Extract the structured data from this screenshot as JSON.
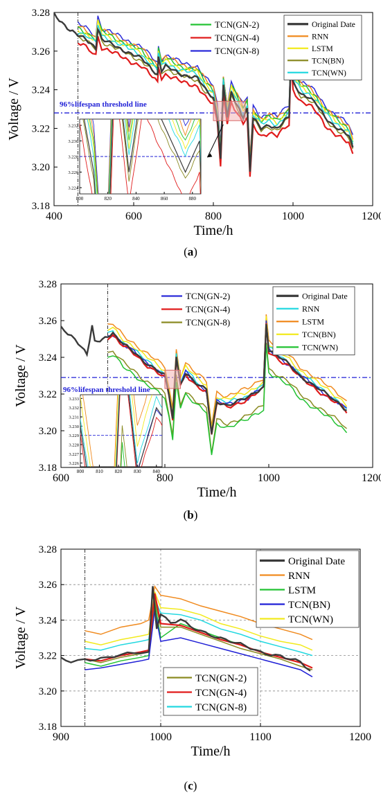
{
  "chart_data": [
    {
      "type": "line",
      "panel": "a",
      "caption_letter": "a",
      "xlabel": "Time/h",
      "ylabel": "Voltage / V",
      "xlim": [
        400,
        1200
      ],
      "ylim": [
        3.18,
        3.28
      ],
      "x_ticks": [
        "400",
        "600",
        "800",
        "1000",
        "1200"
      ],
      "y_ticks": [
        "3.18",
        "3.20",
        "3.22",
        "3.24",
        "3.26",
        "3.28"
      ],
      "grid": false,
      "threshold": {
        "label": "96%lifespan threshold line",
        "value": 3.228,
        "color": "#1f1fd6"
      },
      "prediction_start": 460,
      "legend_left": [
        {
          "name": "TCN(GN-2)",
          "color": "#22c232"
        },
        {
          "name": "TCN(GN-4)",
          "color": "#e01b1b"
        },
        {
          "name": "TCN(GN-8)",
          "color": "#2b2bd9"
        }
      ],
      "legend_right": [
        {
          "name": "Original Date",
          "color": "#3a3a3a"
        },
        {
          "name": "RNN",
          "color": "#f08a1e"
        },
        {
          "name": "LSTM",
          "color": "#f2ea1c"
        },
        {
          "name": "TCN(BN)",
          "color": "#8a8a22"
        },
        {
          "name": "TCN(WN)",
          "color": "#22d8e0"
        }
      ],
      "original": {
        "name": "Original Date",
        "color": "#3a3a3a",
        "points": [
          [
            400,
            3.279
          ],
          [
            420,
            3.275
          ],
          [
            440,
            3.271
          ],
          [
            460,
            3.268
          ],
          [
            480,
            3.266
          ],
          [
            505,
            3.262
          ],
          [
            510,
            3.272
          ],
          [
            520,
            3.266
          ],
          [
            540,
            3.264
          ],
          [
            560,
            3.262
          ],
          [
            580,
            3.26
          ],
          [
            600,
            3.258
          ],
          [
            620,
            3.256
          ],
          [
            640,
            3.252
          ],
          [
            660,
            3.248
          ],
          [
            662,
            3.257
          ],
          [
            670,
            3.25
          ],
          [
            680,
            3.252
          ],
          [
            700,
            3.25
          ],
          [
            720,
            3.248
          ],
          [
            740,
            3.247
          ],
          [
            760,
            3.246
          ],
          [
            780,
            3.24
          ],
          [
            800,
            3.236
          ],
          [
            810,
            3.226
          ],
          [
            818,
            3.205
          ],
          [
            825,
            3.242
          ],
          [
            835,
            3.226
          ],
          [
            845,
            3.238
          ],
          [
            860,
            3.232
          ],
          [
            875,
            3.226
          ],
          [
            885,
            3.23
          ],
          [
            892,
            3.198
          ],
          [
            900,
            3.225
          ],
          [
            920,
            3.22
          ],
          [
            940,
            3.222
          ],
          [
            960,
            3.22
          ],
          [
            980,
            3.224
          ],
          [
            990,
            3.226
          ],
          [
            995,
            3.259
          ],
          [
            1000,
            3.244
          ],
          [
            1020,
            3.238
          ],
          [
            1040,
            3.236
          ],
          [
            1060,
            3.232
          ],
          [
            1080,
            3.226
          ],
          [
            1100,
            3.222
          ],
          [
            1120,
            3.219
          ],
          [
            1140,
            3.216
          ],
          [
            1150,
            3.21
          ]
        ]
      },
      "series": [
        {
          "name": "TCN(GN-8)",
          "color": "#2b2bd9",
          "offset": 0.006
        },
        {
          "name": "RNN",
          "color": "#f08a1e",
          "offset": 0.005
        },
        {
          "name": "TCN(GN-2)",
          "color": "#22c232",
          "offset": 0.004
        },
        {
          "name": "LSTM",
          "color": "#f2ea1c",
          "offset": 0.003
        },
        {
          "name": "TCN(WN)",
          "color": "#22d8e0",
          "offset": 0.002
        },
        {
          "name": "TCN(BN)",
          "color": "#8a8a22",
          "offset": -0.001
        },
        {
          "name": "TCN(GN-4)",
          "color": "#e01b1b",
          "offset": -0.004
        }
      ],
      "inset": {
        "x_ticks": [
          "800",
          "820",
          "840",
          "860",
          "880"
        ],
        "y_ticks": [
          "3.224",
          "3.226",
          "3.228",
          "3.230",
          "3.232"
        ]
      }
    },
    {
      "type": "line",
      "panel": "b",
      "caption_letter": "b",
      "xlabel": "Time/h",
      "ylabel": "Voltage / V",
      "xlim": [
        600,
        1200
      ],
      "ylim": [
        3.18,
        3.28
      ],
      "x_ticks": [
        "600",
        "800",
        "1000",
        "1200"
      ],
      "y_ticks": [
        "3.18",
        "3.20",
        "3.22",
        "3.24",
        "3.26",
        "3.28"
      ],
      "grid": false,
      "threshold": {
        "label": "96%lifespan threshold line",
        "value": 3.229,
        "color": "#1f1fd6"
      },
      "prediction_start": 690,
      "legend_left": [
        {
          "name": "TCN(GN-2)",
          "color": "#2b2bd9"
        },
        {
          "name": "TCN(GN-4)",
          "color": "#e01b1b"
        },
        {
          "name": "TCN(GN-8)",
          "color": "#8a8a22"
        }
      ],
      "legend_right": [
        {
          "name": "Original Date",
          "color": "#3a3a3a"
        },
        {
          "name": "RNN",
          "color": "#22d8e0"
        },
        {
          "name": "LSTM",
          "color": "#f08a1e"
        },
        {
          "name": "TCN(BN)",
          "color": "#f2ea1c"
        },
        {
          "name": "TCN(WN)",
          "color": "#22c232"
        }
      ],
      "original": {
        "name": "Original Date",
        "color": "#3a3a3a",
        "points": [
          [
            600,
            3.256
          ],
          [
            620,
            3.252
          ],
          [
            640,
            3.246
          ],
          [
            650,
            3.241
          ],
          [
            660,
            3.257
          ],
          [
            665,
            3.248
          ],
          [
            680,
            3.25
          ],
          [
            690,
            3.252
          ],
          [
            700,
            3.253
          ],
          [
            720,
            3.247
          ],
          [
            740,
            3.243
          ],
          [
            760,
            3.238
          ],
          [
            780,
            3.234
          ],
          [
            800,
            3.23
          ],
          [
            808,
            3.219
          ],
          [
            815,
            3.207
          ],
          [
            822,
            3.24
          ],
          [
            830,
            3.225
          ],
          [
            840,
            3.232
          ],
          [
            860,
            3.226
          ],
          [
            880,
            3.222
          ],
          [
            890,
            3.198
          ],
          [
            900,
            3.216
          ],
          [
            920,
            3.214
          ],
          [
            940,
            3.216
          ],
          [
            960,
            3.218
          ],
          [
            980,
            3.222
          ],
          [
            990,
            3.224
          ],
          [
            995,
            3.259
          ],
          [
            1000,
            3.244
          ],
          [
            1020,
            3.24
          ],
          [
            1040,
            3.236
          ],
          [
            1060,
            3.23
          ],
          [
            1080,
            3.226
          ],
          [
            1100,
            3.222
          ],
          [
            1120,
            3.218
          ],
          [
            1140,
            3.214
          ],
          [
            1150,
            3.211
          ]
        ]
      },
      "series": [
        {
          "name": "LSTM",
          "color": "#f08a1e",
          "offset": 0.005
        },
        {
          "name": "TCN(BN)",
          "color": "#f2ea1c",
          "offset": 0.003
        },
        {
          "name": "RNN",
          "color": "#22d8e0",
          "offset": 0.001
        },
        {
          "name": "TCN(GN-2)",
          "color": "#2b2bd9",
          "offset": 0.0
        },
        {
          "name": "TCN(GN-4)",
          "color": "#e01b1b",
          "offset": -0.001
        },
        {
          "name": "TCN(GN-8)",
          "color": "#8a8a22",
          "offset": -0.01
        },
        {
          "name": "TCN(WN)",
          "color": "#22c232",
          "offset": -0.012
        }
      ],
      "inset": {
        "x_ticks": [
          "800",
          "810",
          "820",
          "830",
          "840"
        ],
        "y_ticks": [
          "3.226",
          "3.227",
          "3.228",
          "3.229",
          "3.230",
          "3.231",
          "3.232",
          "3.233"
        ]
      }
    },
    {
      "type": "line",
      "panel": "c",
      "caption_letter": "c",
      "xlabel": "Time/h",
      "ylabel": "Voltage / V",
      "xlim": [
        900,
        1200
      ],
      "ylim": [
        3.18,
        3.28
      ],
      "x_ticks": [
        "900",
        "1000",
        "1100",
        "1200"
      ],
      "y_ticks": [
        "3.18",
        "3.20",
        "3.22",
        "3.24",
        "3.26",
        "3.28"
      ],
      "grid": true,
      "prediction_start": 924,
      "legend_left": [
        {
          "name": "TCN(GN-2)",
          "color": "#8a8a22"
        },
        {
          "name": "TCN(GN-4)",
          "color": "#e01b1b"
        },
        {
          "name": "TCN(GN-8)",
          "color": "#22d8e0"
        }
      ],
      "legend_right": [
        {
          "name": "Original Date",
          "color": "#3a3a3a"
        },
        {
          "name": "RNN",
          "color": "#f08a1e"
        },
        {
          "name": "LSTM",
          "color": "#22c232"
        },
        {
          "name": "TCN(BN)",
          "color": "#1f1fd6"
        },
        {
          "name": "TCN(WN)",
          "color": "#f2ea1c"
        }
      ],
      "original": {
        "name": "Original Date",
        "color": "#3a3a3a",
        "points": [
          [
            900,
            3.218
          ],
          [
            910,
            3.217
          ],
          [
            924,
            3.218
          ],
          [
            940,
            3.218
          ],
          [
            960,
            3.22
          ],
          [
            980,
            3.222
          ],
          [
            988,
            3.222
          ],
          [
            992,
            3.259
          ],
          [
            996,
            3.236
          ],
          [
            1000,
            3.244
          ],
          [
            1010,
            3.238
          ],
          [
            1020,
            3.24
          ],
          [
            1030,
            3.236
          ],
          [
            1040,
            3.234
          ],
          [
            1050,
            3.232
          ],
          [
            1060,
            3.23
          ],
          [
            1070,
            3.228
          ],
          [
            1080,
            3.226
          ],
          [
            1090,
            3.224
          ],
          [
            1100,
            3.222
          ],
          [
            1110,
            3.221
          ],
          [
            1120,
            3.22
          ],
          [
            1130,
            3.218
          ],
          [
            1140,
            3.216
          ],
          [
            1150,
            3.211
          ]
        ]
      },
      "series": [
        {
          "name": "RNN",
          "color": "#f08a1e",
          "x": [
            924,
            940,
            960,
            980,
            988,
            994,
            1000,
            1020,
            1040,
            1060,
            1080,
            1100,
            1120,
            1140,
            1152
          ],
          "y": [
            3.234,
            3.232,
            3.236,
            3.238,
            3.24,
            3.259,
            3.254,
            3.252,
            3.248,
            3.245,
            3.242,
            3.238,
            3.235,
            3.232,
            3.229
          ]
        },
        {
          "name": "TCN(WN)",
          "color": "#f2ea1c",
          "x": [
            924,
            940,
            960,
            980,
            988,
            994,
            1000,
            1020,
            1040,
            1060,
            1080,
            1100,
            1120,
            1140,
            1152
          ],
          "y": [
            3.228,
            3.226,
            3.229,
            3.231,
            3.232,
            3.256,
            3.247,
            3.246,
            3.243,
            3.238,
            3.235,
            3.231,
            3.228,
            3.226,
            3.223
          ]
        },
        {
          "name": "TCN(GN-8)",
          "color": "#22d8e0",
          "x": [
            924,
            940,
            960,
            980,
            988,
            994,
            1000,
            1020,
            1040,
            1060,
            1080,
            1100,
            1120,
            1140,
            1152
          ],
          "y": [
            3.224,
            3.223,
            3.226,
            3.228,
            3.229,
            3.252,
            3.244,
            3.243,
            3.24,
            3.235,
            3.232,
            3.228,
            3.225,
            3.222,
            3.22
          ]
        },
        {
          "name": "LSTM",
          "color": "#22c232",
          "x": [
            924,
            940,
            960,
            980,
            988,
            994,
            1000,
            1020,
            1040,
            1060,
            1080,
            1100,
            1120,
            1140,
            1152
          ],
          "y": [
            3.216,
            3.214,
            3.217,
            3.219,
            3.22,
            3.25,
            3.23,
            3.238,
            3.234,
            3.23,
            3.226,
            3.222,
            3.219,
            3.216,
            3.213
          ]
        },
        {
          "name": "TCN(GN-2)",
          "color": "#8a8a22",
          "x": [
            924,
            940,
            960,
            980,
            988,
            994,
            1000,
            1020,
            1040,
            1060,
            1080,
            1100,
            1120,
            1140,
            1152
          ],
          "y": [
            3.218,
            3.216,
            3.219,
            3.221,
            3.222,
            3.252,
            3.236,
            3.236,
            3.232,
            3.228,
            3.224,
            3.221,
            3.218,
            3.214,
            3.212
          ]
        },
        {
          "name": "TCN(GN-4)",
          "color": "#e01b1b",
          "x": [
            924,
            940,
            960,
            980,
            988,
            994,
            1000,
            1020,
            1040,
            1060,
            1080,
            1100,
            1120,
            1140,
            1152
          ],
          "y": [
            3.218,
            3.217,
            3.22,
            3.222,
            3.223,
            3.255,
            3.238,
            3.237,
            3.233,
            3.229,
            3.226,
            3.222,
            3.219,
            3.216,
            3.213
          ]
        },
        {
          "name": "TCN(BN)",
          "color": "#1f1fd6",
          "x": [
            924,
            940,
            960,
            980,
            988,
            994,
            1000,
            1020,
            1040,
            1060,
            1080,
            1100,
            1120,
            1140,
            1152
          ],
          "y": [
            3.212,
            3.213,
            3.215,
            3.217,
            3.218,
            3.246,
            3.228,
            3.23,
            3.227,
            3.224,
            3.221,
            3.218,
            3.215,
            3.212,
            3.208
          ]
        }
      ]
    }
  ]
}
